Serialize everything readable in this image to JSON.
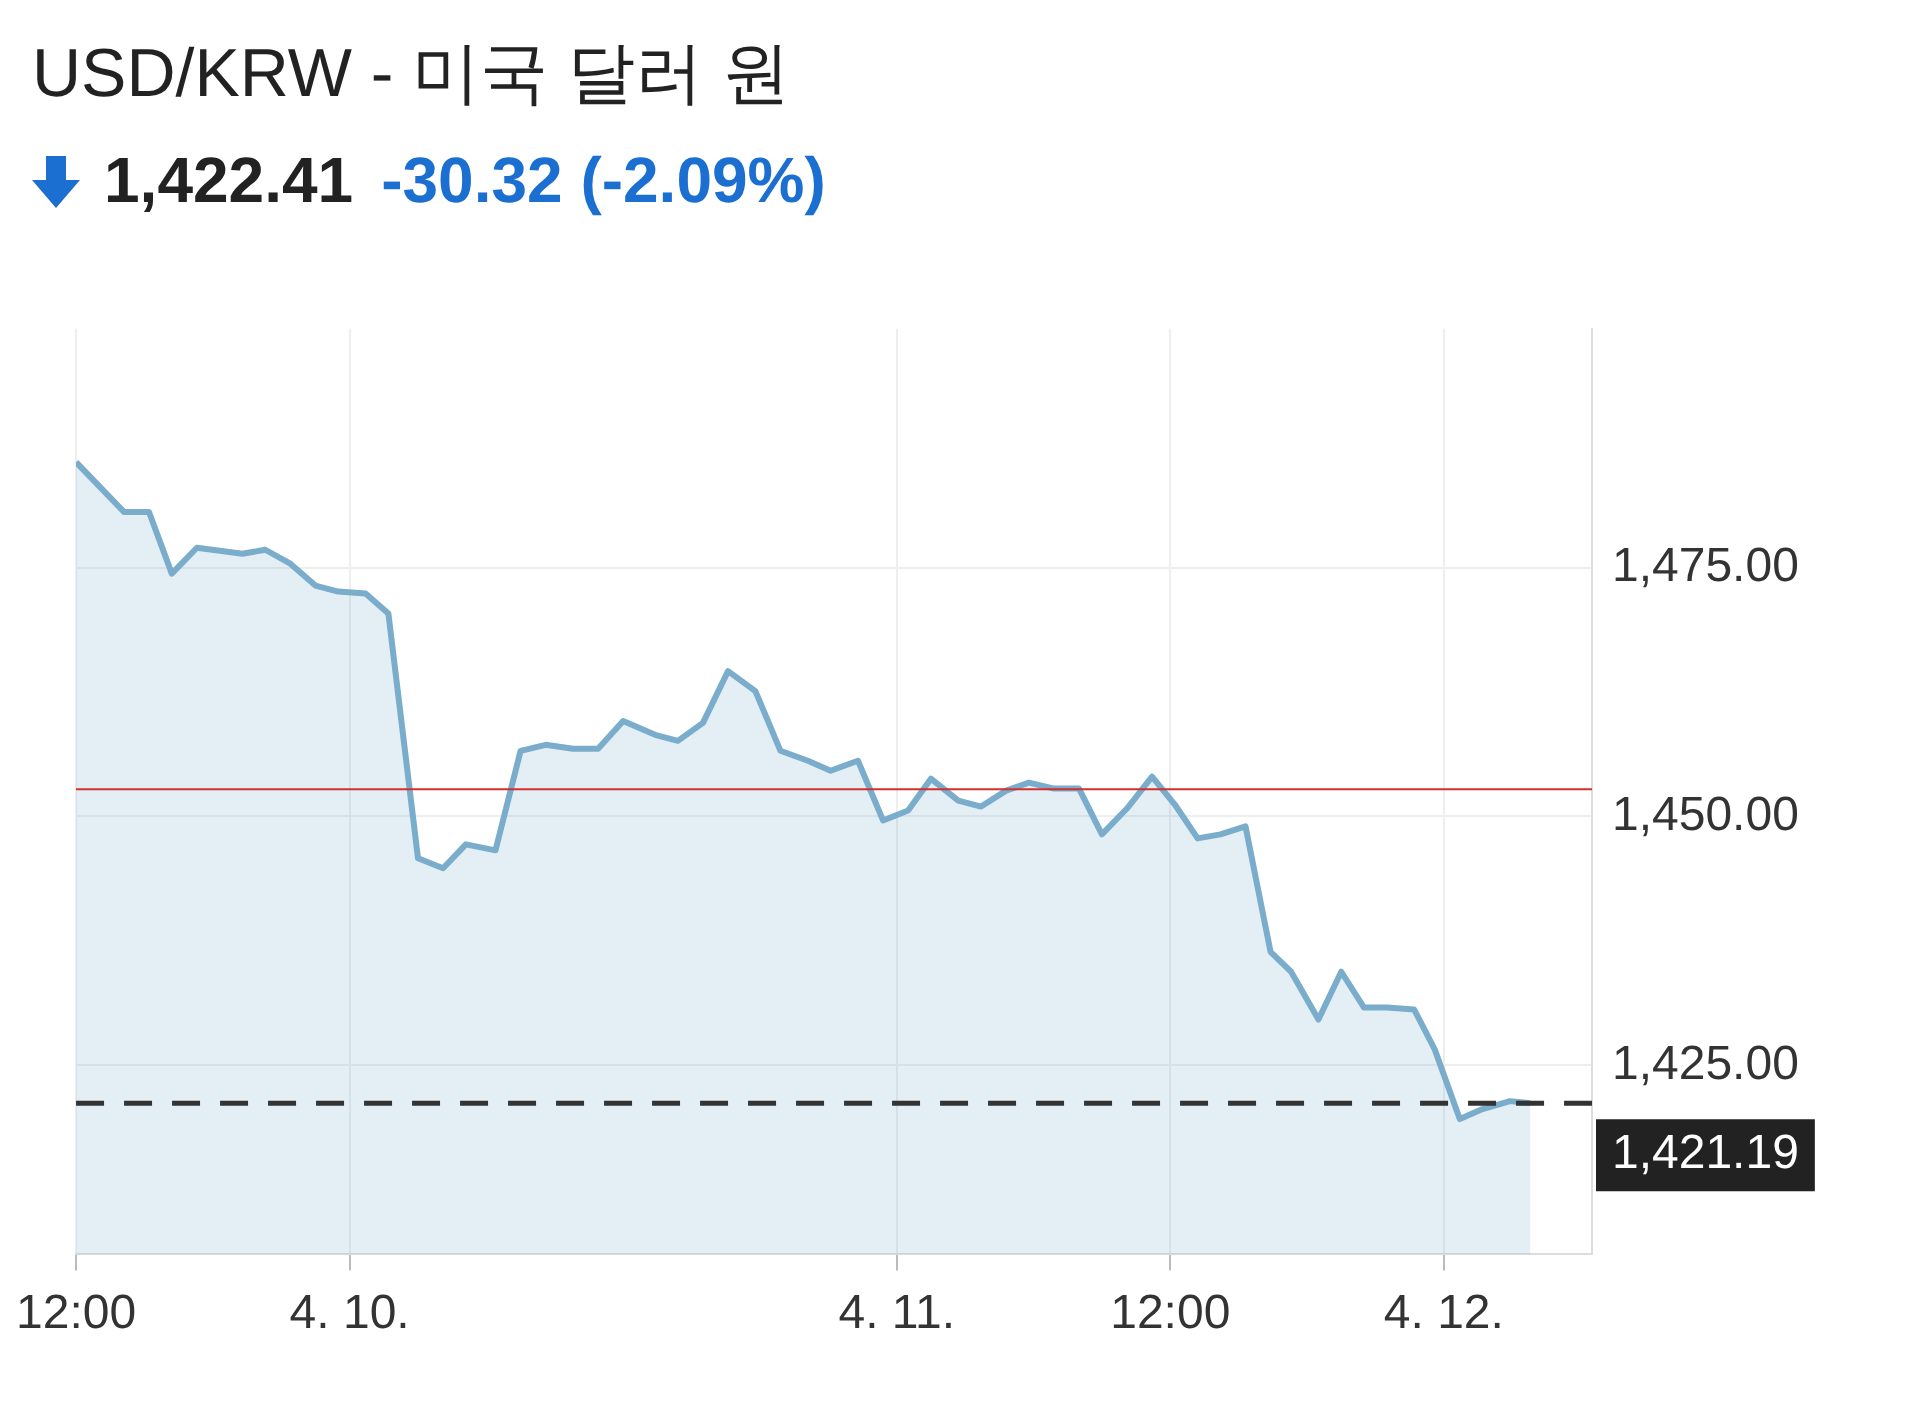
{
  "chart_data": {
    "type": "area",
    "title": "USD/KRW - 미국 달러 원",
    "subtitle": "1,422.41 -30.32 (-2.09%)",
    "x": [
      "--04-09T12:00",
      "--04-09T14:06",
      "--04-09T15:12",
      "--04-09T16:12",
      "--04-09T17:18",
      "--04-09T19:18",
      "--04-09T20:18",
      "--04-09T21:24",
      "--04-09T22:30",
      "--04-09T23:30",
      "--04-10T00:42",
      "--04-10T01:42",
      "--04-10T03:00",
      "--04-10T04:06",
      "--04-10T05:06",
      "--04-10T06:24",
      "--04-10T07:30",
      "--04-10T08:36",
      "--04-10T09:48",
      "--04-10T10:54",
      "--04-10T12:00",
      "--04-10T13:24",
      "--04-10T14:24",
      "--04-10T15:30",
      "--04-10T16:36",
      "--04-10T17:48",
      "--04-10T18:54",
      "--04-10T20:06",
      "--04-10T21:06",
      "--04-10T22:18",
      "--04-10T23:24",
      "--04-11T00:30",
      "--04-11T01:30",
      "--04-11T02:42",
      "--04-11T03:42",
      "--04-11T04:48",
      "--04-11T05:48",
      "--04-11T06:54",
      "--04-11T08:00",
      "--04-11T09:00",
      "--04-11T10:06",
      "--04-11T11:12",
      "--04-11T12:12",
      "--04-11T13:12",
      "--04-11T14:12",
      "--04-11T15:18",
      "--04-11T16:24",
      "--04-11T17:18",
      "--04-11T18:30",
      "--04-11T19:30",
      "--04-11T20:30",
      "--04-11T21:30",
      "--04-11T22:42",
      "--04-11T23:36",
      "--04-12T00:42",
      "--04-12T01:42",
      "--04-12T02:54",
      "--04-12T03:48"
    ],
    "series": [
      {
        "color": "#7aaccc",
        "values": [
          1485.6,
          1480.6,
          1480.6,
          1474.4,
          1477.0,
          1476.4,
          1476.8,
          1475.4,
          1473.2,
          1472.6,
          1472.4,
          1470.4,
          1445.8,
          1444.8,
          1447.2,
          1446.6,
          1456.6,
          1457.2,
          1456.8,
          1456.8,
          1459.6,
          1458.2,
          1457.6,
          1459.4,
          1464.6,
          1462.6,
          1456.6,
          1455.6,
          1454.6,
          1455.6,
          1449.6,
          1450.6,
          1453.8,
          1451.6,
          1451.0,
          1452.6,
          1453.4,
          1452.8,
          1452.8,
          1448.2,
          1450.8,
          1454.0,
          1451.2,
          1447.8,
          1448.2,
          1449.0,
          1436.4,
          1434.4,
          1429.6,
          1434.4,
          1430.8,
          1430.8,
          1430.6,
          1426.6,
          1419.6,
          1420.6,
          1421.4,
          1421.2
        ]
      }
    ],
    "xlim": [
      "--04-09T12:00",
      "--04-12T06:30"
    ],
    "xticks": [
      {
        "value": "--04-09T12:00",
        "label": "12:00"
      },
      {
        "value": "--04-10",
        "label": "4. 10."
      },
      {
        "value": "--04-11",
        "label": "4. 11."
      },
      {
        "value": "--04-11T12:00",
        "label": "12:00"
      },
      {
        "value": "--04-12",
        "label": "4. 12."
      }
    ],
    "ylim": [
      1406,
      1499
    ],
    "yticks": [
      {
        "value": 1425,
        "label": "1,425.00"
      },
      {
        "value": 1450,
        "label": "1,450.00"
      },
      {
        "value": 1475,
        "label": "1,475.00"
      }
    ],
    "ref_lines": [
      {
        "axis": "y",
        "value": 1452.73,
        "color": "#d0312d"
      },
      {
        "axis": "y",
        "value": 1421.19,
        "label": "1,421.19",
        "line_style": "dashed",
        "color": "#333333"
      }
    ],
    "grid": true,
    "legend": false
  }
}
